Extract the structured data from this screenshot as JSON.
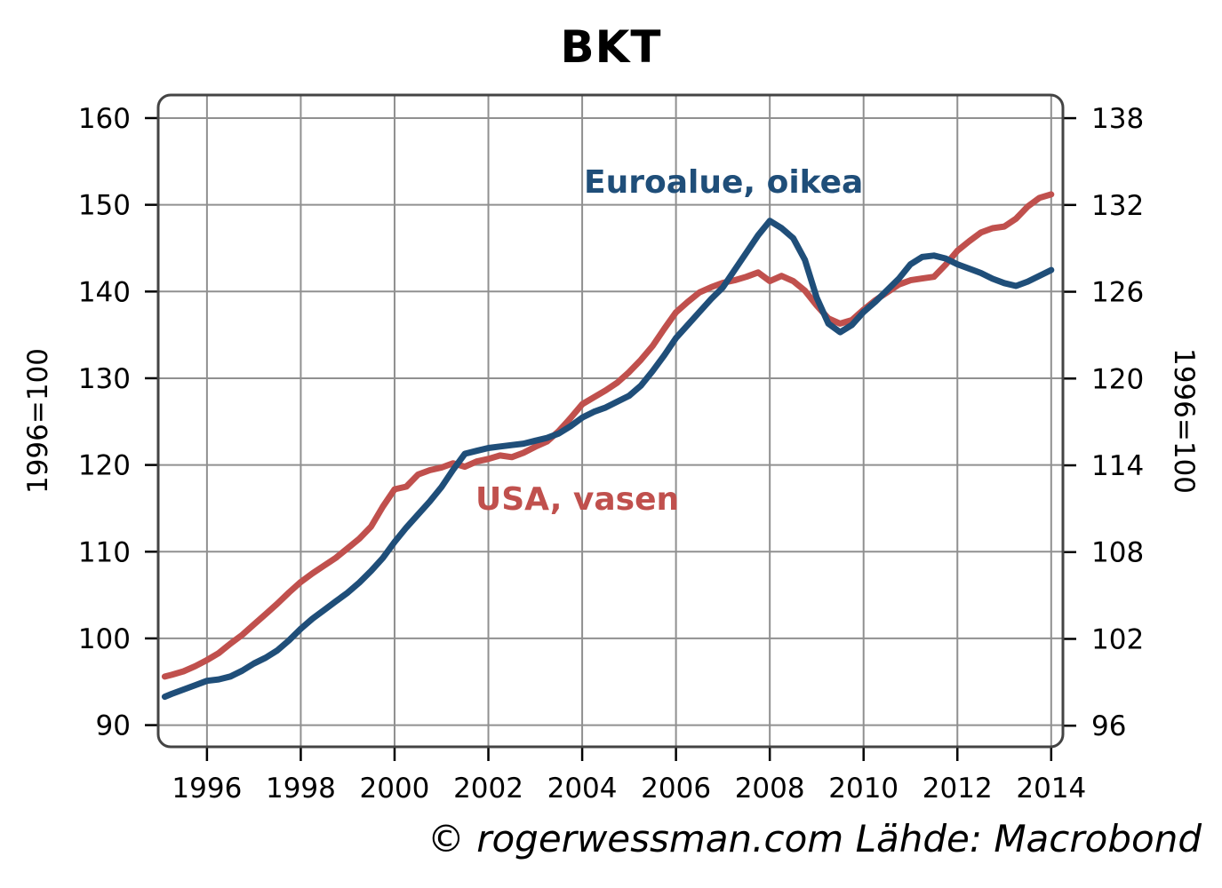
{
  "title": "BKT",
  "footer": "© rogerwessman.com Lähde: Macrobond",
  "annotations": {
    "euro": {
      "text": "Euroalue, oikea"
    },
    "usa": {
      "text": "USA, vasen"
    }
  },
  "y_axis_left": {
    "title": "1996=100"
  },
  "y_axis_right": {
    "title": "1996=100"
  },
  "colors": {
    "euro_line": "#1f4e79",
    "usa_line": "#c0504d",
    "gridline": "#909090",
    "frame": "#444444",
    "tick": "#000000",
    "text": "#000000"
  },
  "chart_data": {
    "type": "line",
    "title": "BKT",
    "grid": true,
    "x_label_ticks": [
      1996,
      1998,
      2000,
      2002,
      2004,
      2006,
      2008,
      2010,
      2012,
      2014
    ],
    "left_axis_ticks": [
      90,
      100,
      110,
      120,
      130,
      140,
      150,
      160
    ],
    "right_axis_ticks": [
      96,
      102,
      108,
      114,
      120,
      126,
      132,
      138
    ],
    "x_range": [
      1994.96,
      2014.25
    ],
    "left_range": [
      87.5,
      162.66
    ],
    "right_range": [
      94.54,
      139.6
    ],
    "x": [
      1995.1,
      1995.25,
      1995.5,
      1995.75,
      1996.0,
      1996.25,
      1996.5,
      1996.75,
      1997.0,
      1997.25,
      1997.5,
      1997.75,
      1998.0,
      1998.25,
      1998.5,
      1998.75,
      1999.0,
      1999.25,
      1999.5,
      1999.75,
      2000.0,
      2000.25,
      2000.5,
      2000.75,
      2001.0,
      2001.25,
      2001.5,
      2001.75,
      2002.0,
      2002.25,
      2002.5,
      2002.75,
      2003.0,
      2003.25,
      2003.5,
      2003.75,
      2004.0,
      2004.25,
      2004.5,
      2004.75,
      2005.0,
      2005.25,
      2005.5,
      2005.75,
      2006.0,
      2006.25,
      2006.5,
      2006.75,
      2007.0,
      2007.25,
      2007.5,
      2007.75,
      2008.0,
      2008.25,
      2008.5,
      2008.75,
      2009.0,
      2009.25,
      2009.5,
      2009.75,
      2010.0,
      2010.25,
      2010.5,
      2010.75,
      2011.0,
      2011.25,
      2011.5,
      2011.75,
      2012.0,
      2012.25,
      2012.5,
      2012.75,
      2013.0,
      2013.25,
      2013.5,
      2013.75,
      2014.0
    ],
    "series": [
      {
        "name": "USA",
        "label": "USA, vasen",
        "axis": "left",
        "color": "#c0504d",
        "values": [
          95.6,
          95.8,
          96.2,
          96.8,
          97.5,
          98.3,
          99.4,
          100.4,
          101.6,
          102.8,
          104.0,
          105.3,
          106.5,
          107.5,
          108.4,
          109.3,
          110.4,
          111.5,
          112.9,
          115.2,
          117.2,
          117.5,
          118.9,
          119.4,
          119.7,
          120.2,
          119.8,
          120.4,
          120.7,
          121.1,
          120.9,
          121.4,
          122.1,
          122.7,
          123.9,
          125.4,
          127.0,
          127.8,
          128.6,
          129.5,
          130.7,
          132.1,
          133.7,
          135.7,
          137.6,
          138.8,
          139.9,
          140.5,
          141.0,
          141.3,
          141.7,
          142.2,
          141.2,
          141.8,
          141.2,
          140.1,
          138.4,
          136.9,
          136.3,
          136.7,
          137.9,
          139.0,
          139.9,
          140.8,
          141.3,
          141.5,
          141.7,
          143.1,
          144.7,
          145.8,
          146.8,
          147.3,
          147.5,
          148.4,
          149.8,
          150.8,
          151.2
        ]
      },
      {
        "name": "Euroalue",
        "label": "Euroalue, oikea",
        "axis": "right",
        "color": "#1f4e79",
        "values": [
          98.0,
          98.2,
          98.5,
          98.8,
          99.1,
          99.2,
          99.4,
          99.8,
          100.3,
          100.7,
          101.2,
          101.9,
          102.7,
          103.4,
          104.0,
          104.6,
          105.2,
          105.9,
          106.7,
          107.6,
          108.7,
          109.7,
          110.6,
          111.5,
          112.5,
          113.7,
          114.8,
          115.0,
          115.2,
          115.3,
          115.4,
          115.5,
          115.7,
          115.9,
          116.2,
          116.7,
          117.3,
          117.7,
          118.0,
          118.4,
          118.8,
          119.5,
          120.5,
          121.6,
          122.8,
          123.7,
          124.6,
          125.5,
          126.3,
          127.5,
          128.7,
          129.9,
          130.9,
          130.4,
          129.7,
          128.2,
          125.6,
          123.8,
          123.2,
          123.7,
          124.6,
          125.3,
          126.1,
          126.9,
          127.9,
          128.4,
          128.5,
          128.3,
          127.9,
          127.6,
          127.3,
          126.9,
          126.6,
          126.4,
          126.7,
          127.1,
          127.5
        ]
      }
    ]
  }
}
